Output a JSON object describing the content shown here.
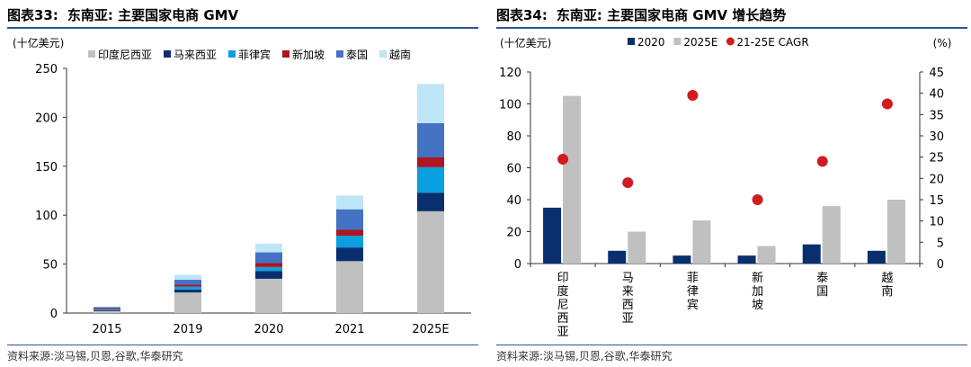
{
  "chart_data": [
    {
      "type": "bar",
      "stacked": true,
      "figure_label": "图表33:",
      "title": "东南亚: 主要国家电商 GMV",
      "unit_label": "(十亿美元)",
      "categories": [
        "2015",
        "2019",
        "2020",
        "2021",
        "2025E"
      ],
      "series": [
        {
          "name": "印度尼西亚",
          "color": "#c0c0c0",
          "values": [
            2,
            21,
            35,
            53,
            104
          ]
        },
        {
          "name": "马来西亚",
          "color": "#0a2f6e",
          "values": [
            1,
            3,
            8,
            14,
            19
          ]
        },
        {
          "name": "菲律宾",
          "color": "#0aa0e0",
          "values": [
            1,
            3,
            4,
            12,
            26
          ]
        },
        {
          "name": "新加坡",
          "color": "#b0141e",
          "values": [
            1,
            2,
            4,
            6,
            10
          ]
        },
        {
          "name": "泰国",
          "color": "#4472c4",
          "values": [
            1,
            5,
            11,
            21,
            35
          ]
        },
        {
          "name": "越南",
          "color": "#bde6f7",
          "values": [
            0.5,
            5,
            9,
            14,
            40
          ]
        }
      ],
      "y_ticks": [
        0,
        50,
        100,
        150,
        200,
        250
      ],
      "ylim": [
        0,
        250
      ],
      "grid": false,
      "legend_position": "top",
      "source": "资料来源:淡马锡,贝恩,谷歌,华泰研究"
    },
    {
      "type": "bar",
      "figure_label": "图表34:",
      "title": "东南亚: 主要国家电商 GMV 增长趋势",
      "unit_label_left": "(十亿美元)",
      "unit_label_right": "(%)",
      "categories": [
        "印度尼西亚",
        "马来西亚",
        "菲律宾",
        "新加坡",
        "泰国",
        "越南"
      ],
      "series": [
        {
          "name": "2020",
          "type": "bar",
          "axis": "left",
          "color": "#0a2f6e",
          "values": [
            35,
            8,
            5,
            5,
            12,
            8
          ]
        },
        {
          "name": "2025E",
          "type": "bar",
          "axis": "left",
          "color": "#c0c0c0",
          "values": [
            105,
            20,
            27,
            11,
            36,
            40
          ]
        },
        {
          "name": "21-25E CAGR",
          "type": "scatter",
          "axis": "right",
          "color": "#d01c1f",
          "values": [
            24.5,
            19,
            39.5,
            15,
            24,
            37.5
          ]
        }
      ],
      "y_left_ticks": [
        0,
        20,
        40,
        60,
        80,
        100,
        120
      ],
      "ylim_left": [
        0,
        120
      ],
      "y_right_ticks": [
        0,
        5,
        10,
        15,
        20,
        25,
        30,
        35,
        40,
        45
      ],
      "ylim_right": [
        0,
        45
      ],
      "grid": false,
      "legend_position": "top",
      "source": "资料来源:淡马锡,贝恩,谷歌,华泰研究"
    }
  ]
}
